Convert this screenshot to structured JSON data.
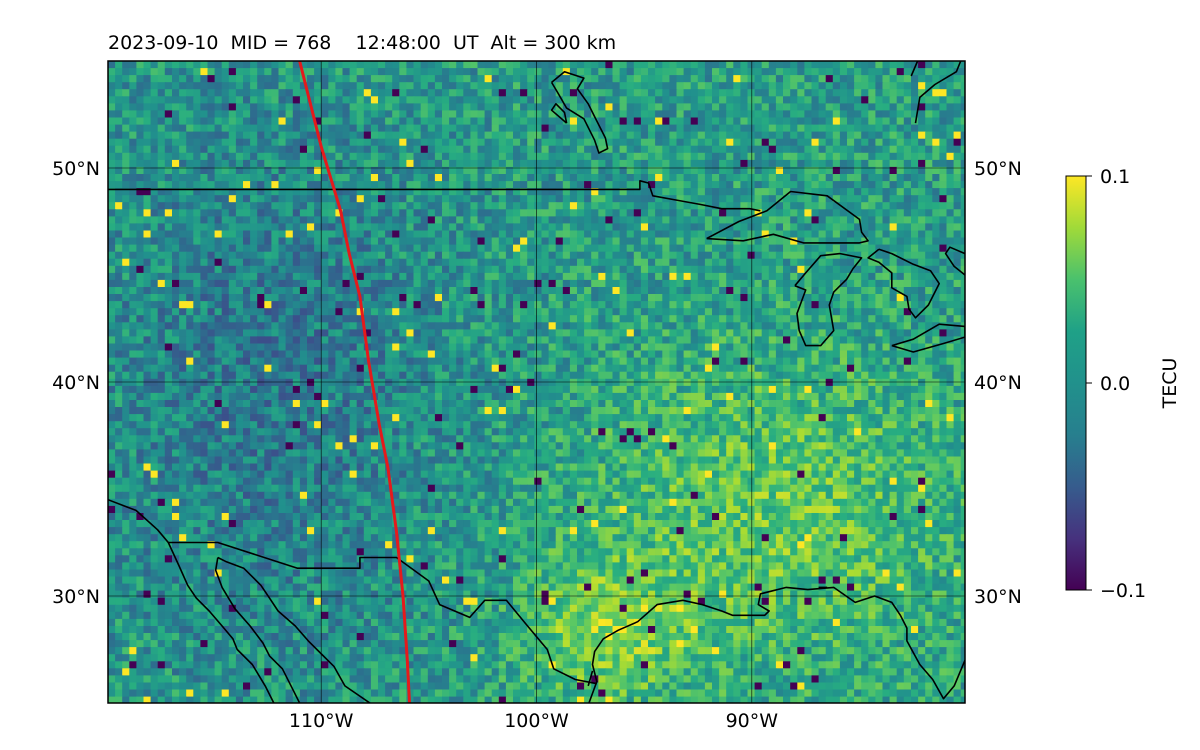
{
  "title": "2023-09-10  MID = 768    12:48:00  UT  Alt = 300 km",
  "colorbar": {
    "label": "TECU",
    "ticks": [
      {
        "value": 0.1,
        "label": "0.1"
      },
      {
        "value": 0.0,
        "label": "0.0"
      },
      {
        "value": -0.1,
        "label": "−0.1"
      }
    ]
  },
  "chart_data": {
    "type": "heatmap",
    "title": "2023-09-10  MID = 768    12:48:00  UT  Alt = 300 km",
    "projection": "plate carree",
    "colormap": "viridis",
    "value_range": [
      -0.1,
      0.1
    ],
    "units": "TECU",
    "xlim": [
      -119.9,
      -80.1
    ],
    "ylim": [
      25,
      55
    ],
    "grid": true,
    "xticks": [
      {
        "value": -110,
        "label": "110°W"
      },
      {
        "value": -100,
        "label": "100°W"
      },
      {
        "value": -90,
        "label": "90°W"
      }
    ],
    "yticks": [
      {
        "value": 30,
        "label": "30°N"
      },
      {
        "value": 40,
        "label": "40°N"
      },
      {
        "value": 50,
        "label": "50°N"
      }
    ],
    "field_description_regions": [
      {
        "lon": [
          -119,
          -106
        ],
        "lat": [
          30,
          50
        ],
        "tendency": -0.03
      },
      {
        "lon": [
          -96,
          -82
        ],
        "lat": [
          28,
          40
        ],
        "tendency": 0.04
      },
      {
        "lon": [
          -100,
          -94
        ],
        "lat": [
          26,
          31
        ],
        "tendency": 0.05
      }
    ],
    "red_track": [
      [
        -111.0,
        55.0
      ],
      [
        -110.0,
        51.0
      ],
      [
        -109.1,
        48.0
      ],
      [
        -108.7,
        46.0
      ],
      [
        -108.2,
        44.0
      ],
      [
        -107.8,
        41.0
      ],
      [
        -107.3,
        38.0
      ],
      [
        -106.9,
        36.0
      ],
      [
        -106.5,
        33.0
      ],
      [
        -106.2,
        30.0
      ],
      [
        -106.0,
        27.0
      ],
      [
        -105.9,
        25.0
      ]
    ],
    "coastlines": [
      [
        [
          -80.1,
          27.0
        ],
        [
          -80.6,
          25.8
        ],
        [
          -81.1,
          25.2
        ],
        [
          -81.6,
          26.1
        ],
        [
          -82.2,
          26.8
        ],
        [
          -82.8,
          27.9
        ],
        [
          -82.8,
          28.5
        ],
        [
          -83.1,
          29.1
        ],
        [
          -83.5,
          29.7
        ],
        [
          -84.3,
          30.0
        ],
        [
          -85.2,
          29.7
        ],
        [
          -86.2,
          30.4
        ],
        [
          -87.4,
          30.3
        ],
        [
          -88.4,
          30.4
        ],
        [
          -89.2,
          30.2
        ],
        [
          -89.6,
          30.1
        ],
        [
          -89.7,
          29.6
        ],
        [
          -89.2,
          29.3
        ],
        [
          -89.4,
          29.1
        ],
        [
          -90.0,
          29.1
        ],
        [
          -90.2,
          29.1
        ],
        [
          -90.9,
          29.1
        ],
        [
          -91.4,
          29.3
        ],
        [
          -92.3,
          29.6
        ],
        [
          -93.2,
          29.8
        ],
        [
          -94.4,
          29.6
        ],
        [
          -95.3,
          28.8
        ],
        [
          -96.2,
          28.4
        ],
        [
          -96.9,
          28.0
        ],
        [
          -97.3,
          27.4
        ],
        [
          -97.4,
          26.8
        ],
        [
          -97.2,
          26.0
        ],
        [
          -97.6,
          24.9
        ]
      ],
      [
        [
          -107.6,
          24.9
        ],
        [
          -108.9,
          25.8
        ],
        [
          -109.4,
          26.7
        ],
        [
          -110.2,
          27.5
        ],
        [
          -110.6,
          27.9
        ],
        [
          -111.2,
          28.6
        ],
        [
          -112.0,
          29.3
        ],
        [
          -112.4,
          29.9
        ],
        [
          -112.8,
          30.5
        ],
        [
          -113.6,
          31.3
        ],
        [
          -114.4,
          31.6
        ],
        [
          -114.8,
          31.8
        ]
      ],
      [
        [
          -114.8,
          31.8
        ],
        [
          -114.9,
          31.2
        ],
        [
          -114.6,
          30.4
        ],
        [
          -114.0,
          29.4
        ],
        [
          -113.3,
          28.6
        ],
        [
          -112.7,
          27.8
        ],
        [
          -112.4,
          27.2
        ],
        [
          -111.8,
          26.6
        ],
        [
          -111.3,
          25.6
        ],
        [
          -111.0,
          25.0
        ]
      ],
      [
        [
          -119.9,
          34.5
        ],
        [
          -118.6,
          34.0
        ],
        [
          -117.6,
          33.1
        ],
        [
          -117.1,
          32.5
        ],
        [
          -116.6,
          31.4
        ],
        [
          -116.2,
          30.5
        ],
        [
          -115.8,
          29.9
        ],
        [
          -115.2,
          29.3
        ],
        [
          -114.6,
          28.6
        ],
        [
          -114.1,
          28.0
        ],
        [
          -113.9,
          27.5
        ],
        [
          -113.2,
          26.8
        ],
        [
          -112.6,
          25.8
        ],
        [
          -112.2,
          25.0
        ]
      ],
      [
        [
          -86.5,
          30.4
        ],
        [
          -86.9,
          30.4
        ]
      ],
      [
        [
          -97.4,
          26.5
        ],
        [
          -97.6,
          25.8
        ]
      ]
    ],
    "borders": [
      [
        [
          -119.9,
          49.0
        ],
        [
          -95.2,
          49.0
        ],
        [
          -95.2,
          49.4
        ],
        [
          -94.8,
          49.3
        ],
        [
          -94.6,
          48.7
        ],
        [
          -93.5,
          48.5
        ],
        [
          -92.4,
          48.3
        ],
        [
          -91.4,
          48.1
        ],
        [
          -90.1,
          48.1
        ],
        [
          -89.6,
          48.0
        ]
      ],
      [
        [
          -119.9,
          24.9
        ],
        [
          -119.9,
          25.0
        ]
      ],
      [
        [
          -117.1,
          32.5
        ],
        [
          -114.8,
          32.5
        ],
        [
          -111.1,
          31.3
        ],
        [
          -108.2,
          31.3
        ],
        [
          -108.2,
          31.8
        ],
        [
          -106.5,
          31.8
        ],
        [
          -105.0,
          30.7
        ],
        [
          -104.5,
          29.6
        ],
        [
          -103.1,
          29.0
        ],
        [
          -102.4,
          29.8
        ],
        [
          -101.4,
          29.8
        ],
        [
          -100.5,
          28.7
        ],
        [
          -99.5,
          27.5
        ],
        [
          -99.2,
          26.6
        ],
        [
          -98.2,
          26.1
        ],
        [
          -97.2,
          25.9
        ]
      ]
    ],
    "lakes": [
      [
        [
          -92.1,
          46.7
        ],
        [
          -90.4,
          46.6
        ],
        [
          -89.0,
          46.9
        ],
        [
          -87.6,
          46.5
        ],
        [
          -85.0,
          46.5
        ],
        [
          -84.6,
          46.6
        ],
        [
          -84.9,
          47.0
        ],
        [
          -85.0,
          47.6
        ],
        [
          -86.5,
          48.7
        ],
        [
          -88.2,
          48.9
        ],
        [
          -89.3,
          48.0
        ],
        [
          -90.6,
          47.5
        ],
        [
          -92.1,
          46.7
        ]
      ],
      [
        [
          -88.0,
          44.5
        ],
        [
          -87.5,
          45.1
        ],
        [
          -86.8,
          45.9
        ],
        [
          -85.9,
          46.0
        ],
        [
          -84.9,
          45.8
        ],
        [
          -85.3,
          45.3
        ],
        [
          -85.6,
          44.8
        ],
        [
          -86.2,
          44.2
        ],
        [
          -86.4,
          43.6
        ],
        [
          -86.2,
          42.4
        ],
        [
          -86.8,
          41.7
        ],
        [
          -87.5,
          41.7
        ],
        [
          -87.8,
          42.4
        ],
        [
          -87.9,
          43.2
        ],
        [
          -87.5,
          44.3
        ],
        [
          -88.0,
          44.5
        ]
      ],
      [
        [
          -84.1,
          46.2
        ],
        [
          -83.5,
          46.0
        ],
        [
          -82.5,
          45.5
        ],
        [
          -81.7,
          45.2
        ],
        [
          -81.3,
          44.6
        ],
        [
          -81.8,
          43.6
        ],
        [
          -82.4,
          43.0
        ],
        [
          -82.7,
          43.4
        ],
        [
          -82.8,
          44.0
        ],
        [
          -83.5,
          44.4
        ],
        [
          -83.5,
          45.1
        ],
        [
          -84.1,
          45.6
        ],
        [
          -84.6,
          45.8
        ],
        [
          -84.1,
          46.2
        ]
      ],
      [
        [
          -83.5,
          41.7
        ],
        [
          -82.5,
          41.4
        ],
        [
          -81.1,
          41.8
        ],
        [
          -80.1,
          42.1
        ],
        [
          -80.1,
          42.6
        ],
        [
          -81.3,
          42.7
        ],
        [
          -82.5,
          42.0
        ],
        [
          -83.5,
          41.7
        ]
      ],
      [
        [
          -80.1,
          45.0
        ],
        [
          -80.6,
          45.4
        ],
        [
          -81.0,
          46.0
        ],
        [
          -80.8,
          46.3
        ],
        [
          -80.1,
          46.0
        ]
      ]
    ],
    "northern_features": [
      [
        [
          -99.3,
          54.0
        ],
        [
          -98.7,
          54.5
        ],
        [
          -97.8,
          54.2
        ],
        [
          -98.1,
          53.7
        ],
        [
          -97.6,
          53.0
        ],
        [
          -97.3,
          52.4
        ],
        [
          -96.8,
          51.4
        ],
        [
          -96.7,
          50.9
        ],
        [
          -97.1,
          50.7
        ],
        [
          -97.3,
          51.3
        ],
        [
          -97.8,
          52.3
        ],
        [
          -98.6,
          52.8
        ],
        [
          -99.0,
          53.5
        ],
        [
          -99.3,
          54.0
        ]
      ],
      [
        [
          -98.6,
          52.1
        ],
        [
          -99.3,
          52.7
        ],
        [
          -99.1,
          53.0
        ],
        [
          -98.7,
          52.6
        ],
        [
          -98.6,
          52.1
        ]
      ],
      [
        [
          -80.3,
          55.0
        ],
        [
          -80.5,
          54.5
        ],
        [
          -81.5,
          53.9
        ],
        [
          -82.2,
          53.3
        ],
        [
          -82.4,
          52.1
        ]
      ],
      [
        [
          -82.3,
          55.0
        ],
        [
          -82.6,
          54.3
        ]
      ]
    ]
  }
}
